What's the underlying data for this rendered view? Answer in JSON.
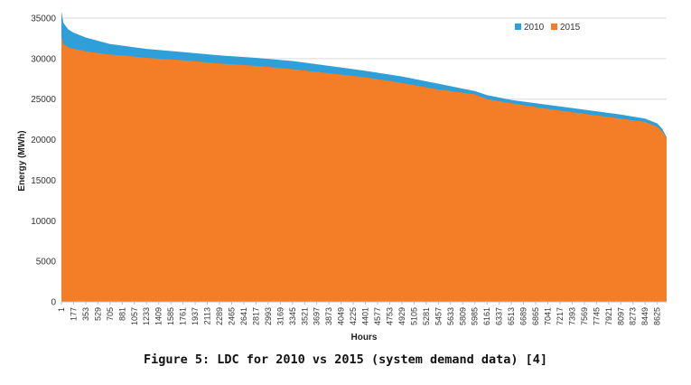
{
  "caption": "Figure 5: LDC for 2010 vs 2015 (system demand data) [4]",
  "chart_data": {
    "type": "area",
    "title": "",
    "xlabel": "Hours",
    "ylabel": "Energy (MWh)",
    "xlim": [
      1,
      8760
    ],
    "ylim": [
      0,
      35000
    ],
    "y_ticks": [
      0,
      5000,
      10000,
      15000,
      20000,
      25000,
      30000,
      35000
    ],
    "x_tick_labels": [
      "1",
      "177",
      "353",
      "529",
      "705",
      "881",
      "1057",
      "1233",
      "1409",
      "1585",
      "1761",
      "1937",
      "2113",
      "2289",
      "2465",
      "2641",
      "2817",
      "2993",
      "3169",
      "3345",
      "3521",
      "3697",
      "3873",
      "4049",
      "4225",
      "4401",
      "4577",
      "4753",
      "4929",
      "5105",
      "5281",
      "5457",
      "5633",
      "5809",
      "5985",
      "6161",
      "6337",
      "6513",
      "6689",
      "6865",
      "7041",
      "7217",
      "7393",
      "7569",
      "7745",
      "7921",
      "8097",
      "8273",
      "8449",
      "8625"
    ],
    "grid": "horizontal",
    "legend_position": "top-right",
    "series": [
      {
        "name": "2010",
        "color": "#2e9fd8",
        "x": [
          1,
          30,
          100,
          177,
          353,
          529,
          705,
          881,
          1233,
          1761,
          2289,
          2817,
          3345,
          3873,
          4401,
          4929,
          5457,
          5985,
          6161,
          6513,
          7041,
          7569,
          8097,
          8449,
          8625,
          8700,
          8760
        ],
        "y": [
          35800,
          34400,
          33600,
          33200,
          32600,
          32200,
          31800,
          31600,
          31200,
          30800,
          30400,
          30100,
          29700,
          29100,
          28500,
          27800,
          26900,
          26000,
          25500,
          24900,
          24300,
          23700,
          23100,
          22600,
          22000,
          21300,
          20300
        ]
      },
      {
        "name": "2015",
        "color": "#f47e27",
        "x": [
          1,
          30,
          100,
          177,
          353,
          529,
          705,
          881,
          1233,
          1761,
          2289,
          2817,
          3345,
          3873,
          4401,
          4929,
          5457,
          5985,
          6161,
          6513,
          7041,
          7569,
          8097,
          8449,
          8625,
          8700,
          8760
        ],
        "y": [
          32700,
          31800,
          31400,
          31200,
          30900,
          30700,
          30500,
          30400,
          30100,
          29800,
          29400,
          29100,
          28700,
          28200,
          27700,
          27000,
          26200,
          25600,
          25000,
          24500,
          23800,
          23200,
          22600,
          22200,
          21600,
          21000,
          20100
        ]
      }
    ]
  }
}
